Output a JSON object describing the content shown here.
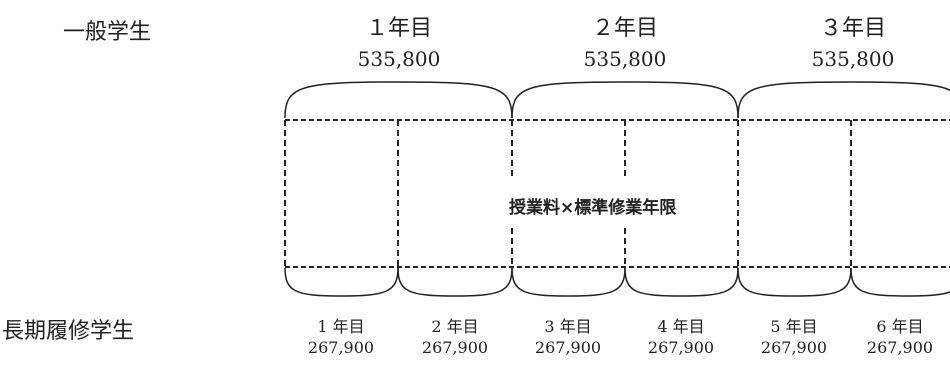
{
  "general": {
    "label": "一般学生",
    "years": [
      {
        "label": "１年目",
        "amount": "535,800"
      },
      {
        "label": "２年目",
        "amount": "535,800"
      },
      {
        "label": "３年目",
        "amount": "535,800"
      }
    ]
  },
  "long_term": {
    "label": "長期履修学生",
    "years": [
      {
        "label": "1 年目",
        "amount": "267,900"
      },
      {
        "label": "2 年目",
        "amount": "267,900"
      },
      {
        "label": "3 年目",
        "amount": "267,900"
      },
      {
        "label": "4 年目",
        "amount": "267,900"
      },
      {
        "label": "5 年目",
        "amount": "267,900"
      },
      {
        "label": "6 年目",
        "amount": "267,900"
      }
    ]
  },
  "center_caption": "授業料×標準修業年限"
}
